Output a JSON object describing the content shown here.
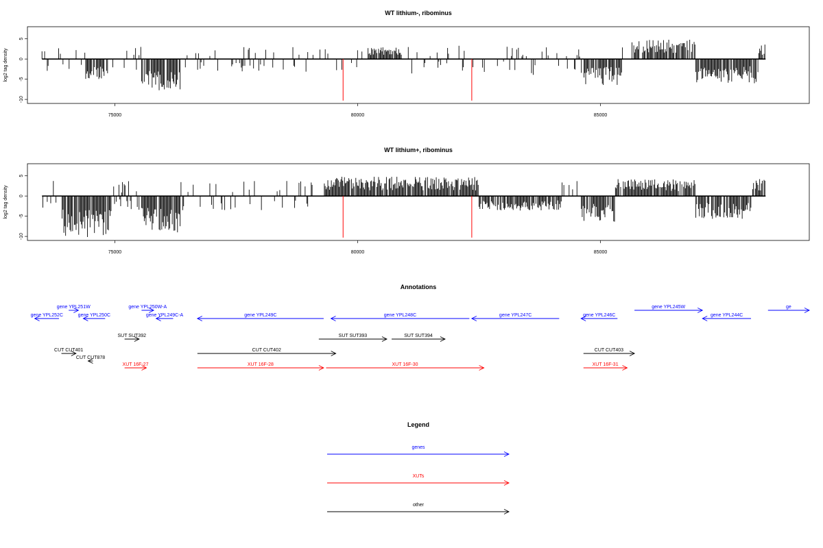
{
  "chart_data": [
    {
      "type": "bar",
      "title": "WT lithium-, ribominus",
      "ylabel": "log2 tag density",
      "xlim": [
        73200,
        89300
      ],
      "ylim": [
        -11,
        8
      ],
      "x_ticks": [
        75000,
        80000,
        85000
      ],
      "y_ticks": [
        -10,
        -5,
        0,
        5
      ],
      "baseline_range": [
        73500,
        88400
      ],
      "markers": [
        79700,
        82350
      ],
      "marker_color": "#ff0000",
      "bar_color": "#000000",
      "profile": [
        {
          "range": [
            74400,
            74850
          ],
          "value": -4.5
        },
        {
          "range": [
            75550,
            76350
          ],
          "value": -6.5
        },
        {
          "range": [
            84600,
            85450
          ],
          "value": -5.5
        },
        {
          "range": [
            85650,
            87400
          ],
          "value": 4.0
        },
        {
          "range": [
            86950,
            88250
          ],
          "value": -5.0
        },
        {
          "range": [
            80200,
            80900
          ],
          "value": 2.5
        },
        {
          "range": [
            88250,
            88400
          ],
          "value": 3.0
        }
      ],
      "background_value": 2.0
    },
    {
      "type": "bar",
      "title": "WT lithium+, ribominus",
      "ylabel": "log2 tag density",
      "xlim": [
        73200,
        89300
      ],
      "ylim": [
        -11,
        8
      ],
      "x_ticks": [
        75000,
        80000,
        85000
      ],
      "y_ticks": [
        -10,
        -5,
        0,
        5
      ],
      "baseline_range": [
        73500,
        88400
      ],
      "markers": [
        79700,
        82350
      ],
      "marker_color": "#ff0000",
      "bar_color": "#000000",
      "profile": [
        {
          "range": [
            73900,
            74950
          ],
          "value": -8.5
        },
        {
          "range": [
            75550,
            76350
          ],
          "value": -7.5
        },
        {
          "range": [
            79300,
            82600
          ],
          "value": 4.0
        },
        {
          "range": [
            82500,
            84200
          ],
          "value": -3.0
        },
        {
          "range": [
            84600,
            85450
          ],
          "value": -5.5
        },
        {
          "range": [
            85300,
            87300
          ],
          "value": 3.5
        },
        {
          "range": [
            86950,
            88100
          ],
          "value": -5.0
        },
        {
          "range": [
            88100,
            88400
          ],
          "value": 3.5
        }
      ],
      "background_value": 2.5
    }
  ],
  "annotations": {
    "title": "Annotations",
    "colors": {
      "gene": "#0000ff",
      "xut": "#ff0000",
      "other": "#000000"
    },
    "tracks": [
      {
        "label": "gene YPL251W",
        "kind": "gene",
        "from": 74050,
        "to": 74250,
        "row": 0
      },
      {
        "label": "gene YPL252C",
        "kind": "gene",
        "from": 73850,
        "to": 73350,
        "row": 1
      },
      {
        "label": "gene YPL250C",
        "kind": "gene",
        "from": 74800,
        "to": 74350,
        "row": 1
      },
      {
        "label": "gene YPL250W-A",
        "kind": "gene",
        "from": 75550,
        "to": 75800,
        "row": 0
      },
      {
        "label": "gene YPL249C-A",
        "kind": "gene",
        "from": 76200,
        "to": 75850,
        "row": 1
      },
      {
        "label": "gene YPL249C",
        "kind": "gene",
        "from": 79300,
        "to": 76700,
        "row": 1
      },
      {
        "label": "gene YPL248C",
        "kind": "gene",
        "from": 82300,
        "to": 79450,
        "row": 1
      },
      {
        "label": "gene YPL247C",
        "kind": "gene",
        "from": 84150,
        "to": 82350,
        "row": 1
      },
      {
        "label": "gene YPL246C",
        "kind": "gene",
        "from": 85350,
        "to": 84600,
        "row": 1
      },
      {
        "label": "gene YPL245W",
        "kind": "gene",
        "from": 85700,
        "to": 87100,
        "row": 0
      },
      {
        "label": "gene YPL244C",
        "kind": "gene",
        "from": 88100,
        "to": 87100,
        "row": 1
      },
      {
        "label": "ge",
        "kind": "gene",
        "from": 88450,
        "to": 89300,
        "row": 0
      },
      {
        "label": "SUT SUT392",
        "kind": "other",
        "from": 75200,
        "to": 75500,
        "row": 2
      },
      {
        "label": "SUT SUT393",
        "kind": "other",
        "from": 79200,
        "to": 80600,
        "row": 2
      },
      {
        "label": "SUT SUT394",
        "kind": "other",
        "from": 80700,
        "to": 81800,
        "row": 2
      },
      {
        "label": "CUT CUT401",
        "kind": "other",
        "from": 73900,
        "to": 74200,
        "row": 3
      },
      {
        "label": "CUT CUT402",
        "kind": "other",
        "from": 76700,
        "to": 79550,
        "row": 3
      },
      {
        "label": "CUT CUT403",
        "kind": "other",
        "from": 84650,
        "to": 85700,
        "row": 3
      },
      {
        "label": "CUT CUT878",
        "kind": "other",
        "from": 74550,
        "to": 74450,
        "row": 4
      },
      {
        "label": "XUT 16F-27",
        "kind": "xut",
        "from": 75200,
        "to": 75650,
        "row": 5
      },
      {
        "label": "XUT 16F-28",
        "kind": "xut",
        "from": 76700,
        "to": 79300,
        "row": 5
      },
      {
        "label": "XUT 16F-30",
        "kind": "xut",
        "from": 79350,
        "to": 82600,
        "row": 5
      },
      {
        "label": "XUT 16F-31",
        "kind": "xut",
        "from": 84650,
        "to": 85550,
        "row": 5
      }
    ]
  },
  "legend": {
    "title": "Legend",
    "items": [
      {
        "label": "genes",
        "color": "#0000ff"
      },
      {
        "label": "XUTs",
        "color": "#ff0000"
      },
      {
        "label": "other",
        "color": "#000000"
      }
    ]
  }
}
